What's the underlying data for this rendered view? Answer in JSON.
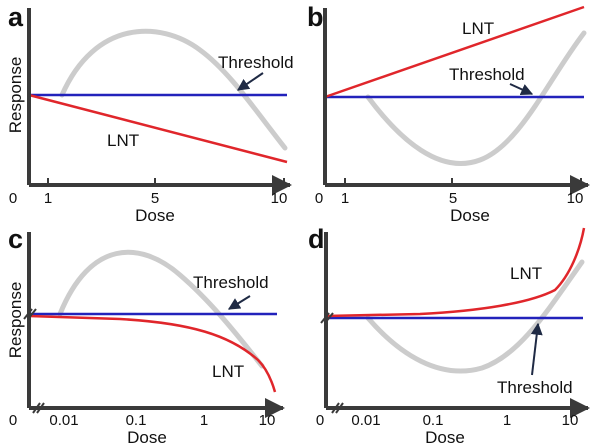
{
  "colors": {
    "axis": "#3a3a3a",
    "lnt": "#e0262b",
    "threshold": "#2222bb",
    "hormesis": "#cccccc",
    "arrow": "#1f2a44"
  },
  "axis_titles": {
    "y": "Response",
    "x": "Dose"
  },
  "panels": {
    "a": {
      "label": "a",
      "xticks": [
        "0",
        "1",
        "5",
        "10"
      ],
      "ylabel": "Response",
      "xlabel": "Dose",
      "lnt": "LNT",
      "threshold": "Threshold"
    },
    "b": {
      "label": "b",
      "xticks": [
        "0",
        "1",
        "5",
        "10"
      ],
      "ylabel": "",
      "xlabel": "Dose",
      "lnt": "LNT",
      "threshold": "Threshold"
    },
    "c": {
      "label": "c",
      "xticks": [
        "0",
        "0.01",
        "0.1",
        "1",
        "10"
      ],
      "ylabel": "Response",
      "xlabel": "Dose",
      "lnt": "LNT",
      "threshold": "Threshold"
    },
    "d": {
      "label": "d",
      "xticks": [
        "0",
        "0.01",
        "0.1",
        "1",
        "10"
      ],
      "ylabel": "",
      "xlabel": "Dose",
      "lnt": "LNT",
      "threshold": "Threshold"
    }
  }
}
